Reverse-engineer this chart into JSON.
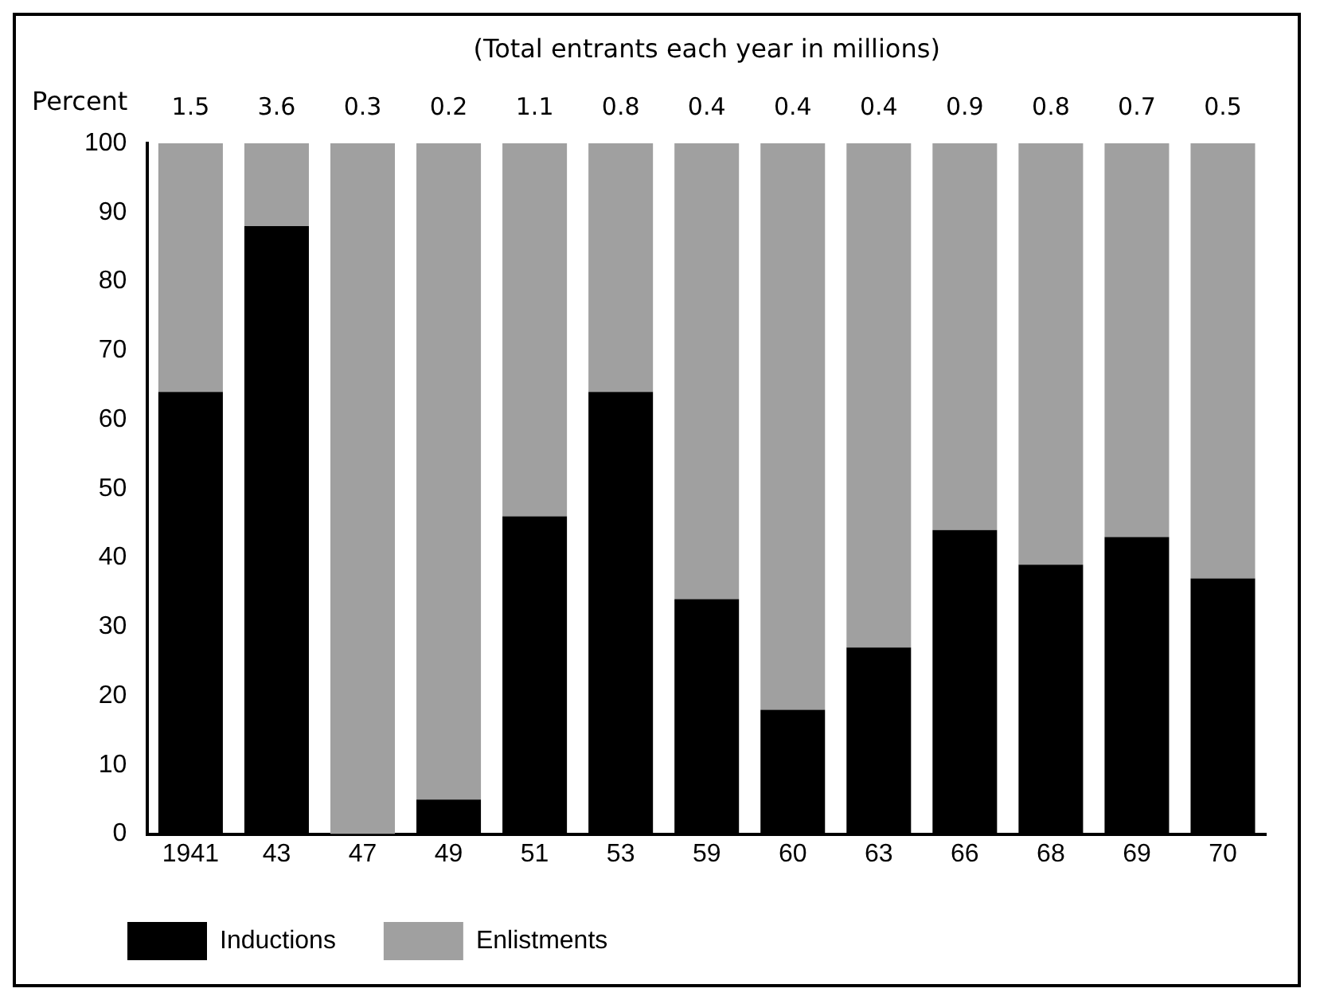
{
  "chart_data": {
    "type": "bar",
    "subtitle": "(Total entrants each year in millions)",
    "ylabel": "Percent",
    "categories": [
      "1941",
      "43",
      "47",
      "49",
      "51",
      "53",
      "59",
      "60",
      "63",
      "66",
      "68",
      "69",
      "70"
    ],
    "stacked": true,
    "series": [
      {
        "name": "Inductions",
        "color": "#000000",
        "values": [
          64,
          88,
          0,
          5,
          46,
          64,
          34,
          18,
          27,
          44,
          39,
          43,
          37
        ]
      },
      {
        "name": "Enlistments",
        "color": "#a0a0a0",
        "values": [
          36,
          12,
          100,
          95,
          54,
          36,
          66,
          82,
          73,
          56,
          61,
          57,
          63
        ]
      }
    ],
    "annotations": [
      "1.5",
      "3.6",
      "0.3",
      "0.2",
      "1.1",
      "0.8",
      "0.4",
      "0.4",
      "0.4",
      "0.9",
      "0.8",
      "0.7",
      "0.5"
    ],
    "ylim": [
      0,
      100
    ],
    "yticks": [
      0,
      10,
      20,
      30,
      40,
      50,
      60,
      70,
      80,
      90,
      100
    ],
    "grid": false,
    "legend": "bottom"
  }
}
